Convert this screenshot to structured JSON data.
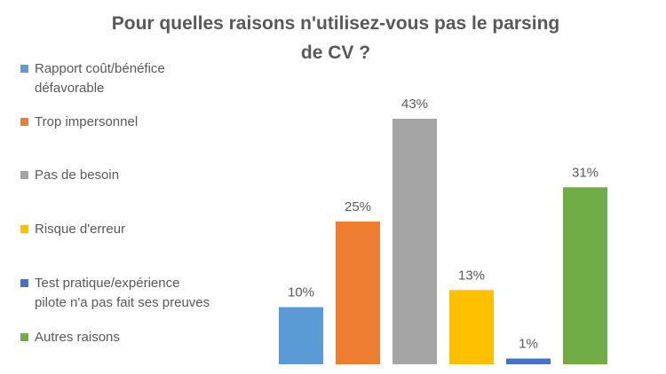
{
  "chart_data": {
    "type": "bar",
    "title": "Pour quelles raisons n'utilisez-vous pas le parsing de CV ?",
    "title_lines": [
      "Pour quelles raisons n'utilisez-vous pas le parsing",
      "de CV ?"
    ],
    "categories": [
      "Rapport coût/bénéfice défavorable",
      "Trop impersonnel",
      "Pas de besoin",
      "Risque d'erreur",
      "Test pratique/expérience pilote n'a pas fait ses preuves",
      "Autres raisons"
    ],
    "legend_lines": [
      [
        "Rapport coût/bénéfice",
        "défavorable"
      ],
      [
        "Trop impersonnel"
      ],
      [
        "Pas de besoin"
      ],
      [
        "Risque d'erreur"
      ],
      [
        "Test pratique/expérience",
        "pilote n'a pas fait ses preuves"
      ],
      [
        "Autres raisons"
      ]
    ],
    "values": [
      10,
      25,
      43,
      13,
      1,
      31
    ],
    "data_labels": [
      "10%",
      "25%",
      "43%",
      "13%",
      "1%",
      "31%"
    ],
    "colors": [
      "#5B9BD5",
      "#ED7D31",
      "#A5A5A5",
      "#FFC000",
      "#4472C4",
      "#70AD47"
    ],
    "xlabel": "",
    "ylabel": "",
    "ylim": [
      0,
      43
    ],
    "grid": false,
    "legend_position": "left"
  }
}
